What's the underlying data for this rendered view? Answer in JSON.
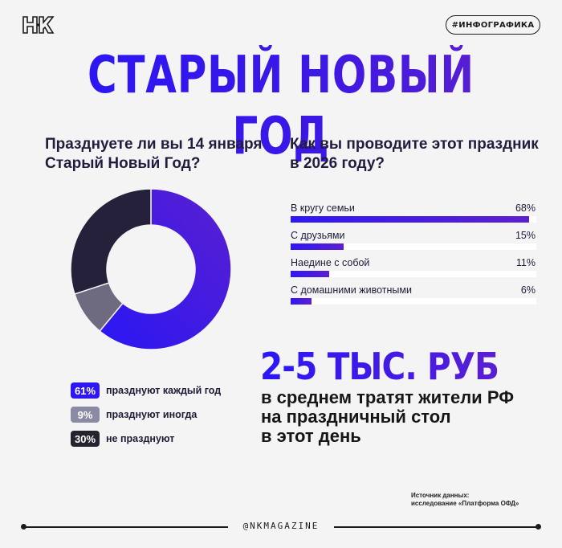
{
  "brand": {
    "logo_text": "НК",
    "tag": "#ИНФОГРАФИКА",
    "handle": "@NKMAGAZINE"
  },
  "title": "СТАРЫЙ НОВЫЙ ГОД",
  "colors": {
    "accent": "#2f17f4",
    "accent_end": "#5c20cf",
    "grey": "#6e6a80",
    "dark": "#26213b",
    "bg": "#f4f4f5"
  },
  "donut_section": {
    "question": "Празднуете ли вы 14 января Старый Новый Год?",
    "legend": [
      {
        "value": "61%",
        "label": "празднуют каждый год",
        "color": "#2f17f4"
      },
      {
        "value": "9%",
        "label": "празднуют иногда",
        "color": "#8b8aa3"
      },
      {
        "value": "30%",
        "label": "не празднуют",
        "color": "#26232e"
      }
    ]
  },
  "bar_section": {
    "question": "Как вы проводите этот праздник в 2026 году?",
    "items": [
      {
        "label": "В кругу семьи",
        "value": "68%",
        "pct": 68
      },
      {
        "label": "С друзьями",
        "value": "15%",
        "pct": 15
      },
      {
        "label": "Наедине с собой",
        "value": "11%",
        "pct": 11
      },
      {
        "label": "С домашними животными",
        "value": "6%",
        "pct": 6
      }
    ]
  },
  "highlight": {
    "amount": "2-5 ТЫС. РУБ",
    "description": "в среднем тратят жители РФ\nна праздничный стол\nв этот день"
  },
  "source": "Источник данных:\nисследование «Платформа ОФД»",
  "chart_data": [
    {
      "type": "pie",
      "title": "Празднуете ли вы 14 января Старый Новый Год?",
      "categories": [
        "празднуют каждый год",
        "празднуют иногда",
        "не празднуют"
      ],
      "values": [
        61,
        9,
        30
      ],
      "donut": true,
      "legend_position": "bottom"
    },
    {
      "type": "bar",
      "orientation": "horizontal",
      "title": "Как вы проводите этот праздник в 2026 году?",
      "categories": [
        "В кругу семьи",
        "С друзьями",
        "Наедине с собой",
        "С домашними животными"
      ],
      "values": [
        68,
        15,
        11,
        6
      ],
      "unit": "%",
      "grid": false
    }
  ]
}
